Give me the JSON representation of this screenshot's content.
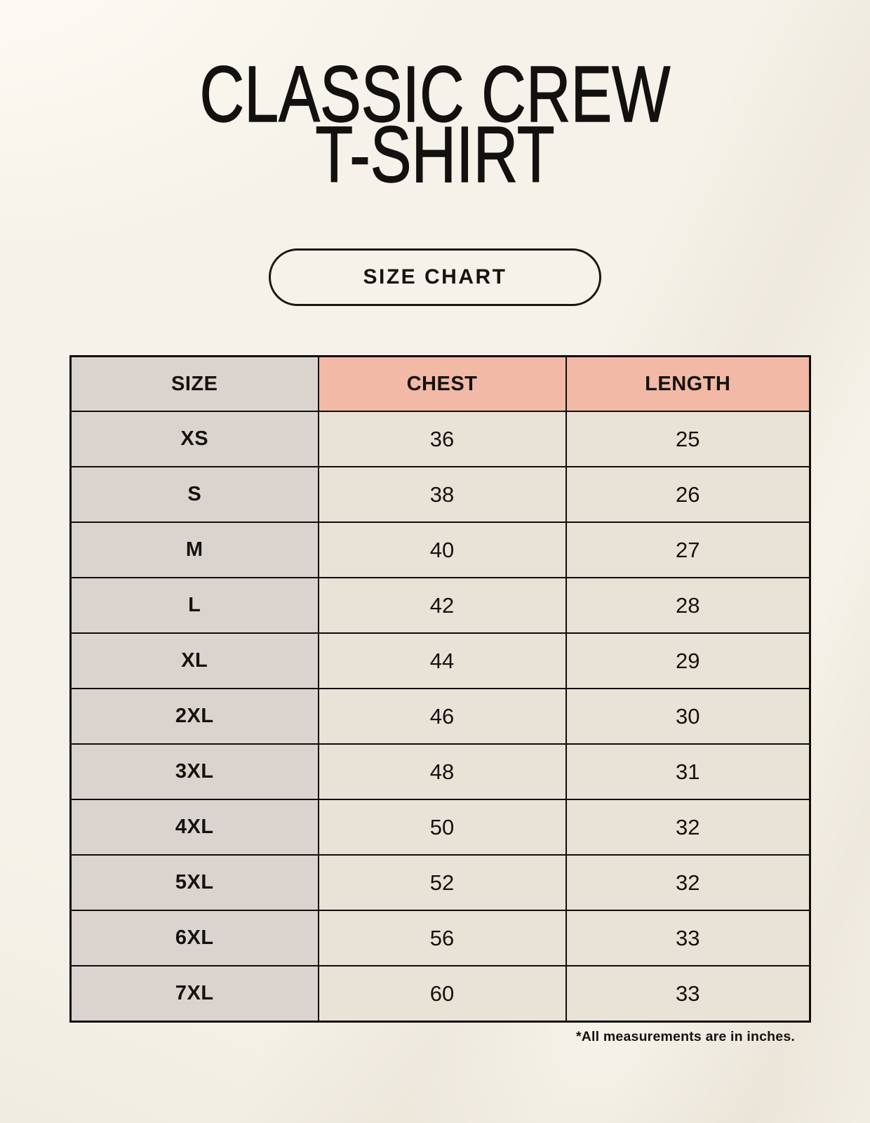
{
  "page": {
    "title_line1": "CLASSIC CREW",
    "title_line2": "T-SHIRT",
    "button_label": "SIZE CHART",
    "footnote": "*All measurements are in inches."
  },
  "table": {
    "columns": [
      "SIZE",
      "CHEST",
      "LENGTH"
    ],
    "rows": [
      {
        "size": "XS",
        "chest": "36",
        "length": "25"
      },
      {
        "size": "S",
        "chest": "38",
        "length": "26"
      },
      {
        "size": "M",
        "chest": "40",
        "length": "27"
      },
      {
        "size": "L",
        "chest": "42",
        "length": "28"
      },
      {
        "size": "XL",
        "chest": "44",
        "length": "29"
      },
      {
        "size": "2XL",
        "chest": "46",
        "length": "30"
      },
      {
        "size": "3XL",
        "chest": "48",
        "length": "31"
      },
      {
        "size": "4XL",
        "chest": "50",
        "length": "32"
      },
      {
        "size": "5XL",
        "chest": "52",
        "length": "32"
      },
      {
        "size": "6XL",
        "chest": "56",
        "length": "33"
      },
      {
        "size": "7XL",
        "chest": "60",
        "length": "33"
      }
    ]
  },
  "colors": {
    "background": "#f6f2e9",
    "size_column_bg": "#dbd4ce",
    "measure_header_bg": "#f1b9a6",
    "value_cell_bg": "#e9e2d6",
    "border": "#0f0e0c",
    "text": "#141210"
  }
}
